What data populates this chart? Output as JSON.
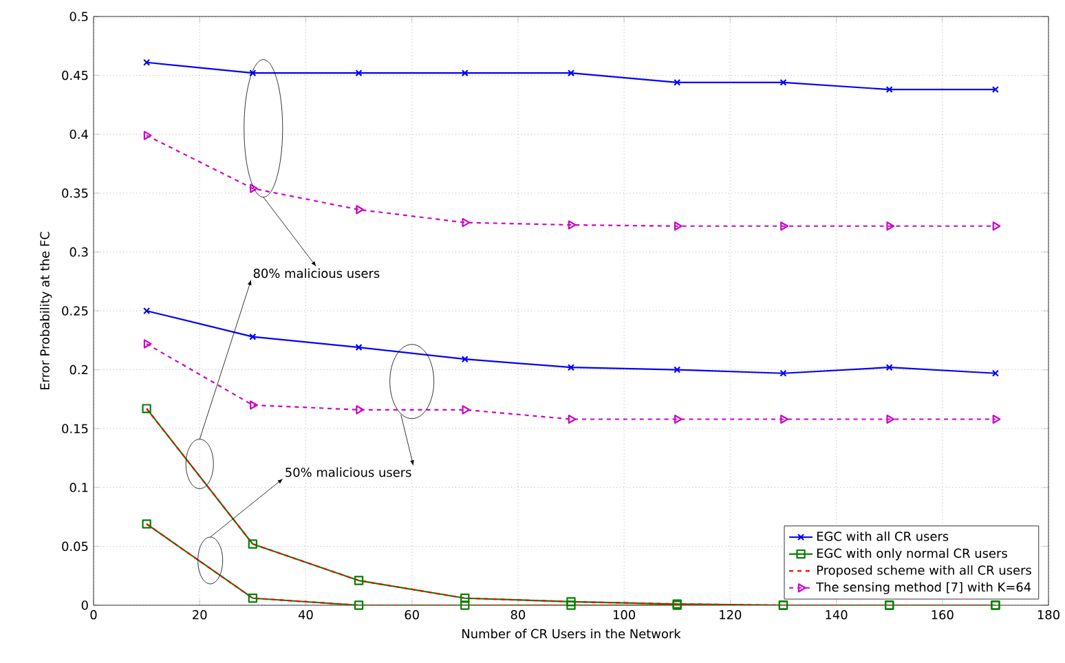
{
  "chart_data": {
    "type": "line",
    "xlabel": "Number of CR Users in the Network",
    "ylabel": "Error Probability at the FC",
    "x": [
      10,
      30,
      50,
      70,
      90,
      110,
      130,
      150,
      170
    ],
    "series": [
      {
        "name": "EGC with all CR users",
        "color": "#0000ff",
        "marker": "cross",
        "line_style": "solid",
        "values": [
          0.461,
          0.452,
          0.452,
          0.452,
          0.452,
          0.444,
          0.444,
          0.438,
          0.438
        ]
      },
      {
        "name": "EGC with only normal CR users",
        "color": "#008000",
        "marker": "square",
        "line_style": "solid",
        "values": [
          0.167,
          0.052,
          0.021,
          0.006,
          0.003,
          0.001,
          0,
          0,
          0
        ]
      },
      {
        "name": "Proposed scheme with all CR users",
        "color": "#ff0000",
        "marker": "none",
        "line_style": "dashed",
        "values": [
          0.167,
          0.052,
          0.021,
          0.006,
          0.003,
          0.001,
          0,
          0,
          0
        ]
      },
      {
        "name": "The sensing method [7] with K=64",
        "color": "#cc00cc",
        "marker": "triangle",
        "line_style": "dashed",
        "values": [
          0.399,
          0.354,
          0.336,
          0.325,
          0.323,
          0.322,
          0.322,
          0.322,
          0.322
        ]
      },
      {
        "color": "#0000ff",
        "marker": "cross",
        "line_style": "solid",
        "values": [
          0.25,
          0.228,
          0.219,
          0.209,
          0.202,
          0.2,
          0.197,
          0.202,
          0.197
        ]
      },
      {
        "color": "#008000",
        "marker": "square",
        "line_style": "solid",
        "values": [
          0.069,
          0.006,
          0,
          0,
          0,
          0,
          0,
          0,
          0
        ]
      },
      {
        "color": "#ff0000",
        "marker": "none",
        "line_style": "dashed",
        "values": [
          0.069,
          0.006,
          0,
          0,
          0,
          0,
          0,
          0,
          0
        ]
      },
      {
        "color": "#cc00cc",
        "marker": "triangle",
        "line_style": "dashed",
        "values": [
          0.222,
          0.17,
          0.166,
          0.166,
          0.158,
          0.158,
          0.158,
          0.158,
          0.158
        ]
      }
    ],
    "xlim": [
      0,
      180
    ],
    "xticks": [
      0,
      20,
      40,
      60,
      80,
      100,
      120,
      140,
      160,
      180
    ],
    "ylim": [
      0,
      0.5
    ],
    "yticks": [
      0,
      0.05,
      0.1,
      0.15,
      0.2,
      0.25,
      0.3,
      0.35,
      0.4,
      0.45,
      0.5
    ],
    "grid": true,
    "legend": "bottom right",
    "annotations": [
      "80% malicious users",
      "50% malicious users"
    ]
  }
}
